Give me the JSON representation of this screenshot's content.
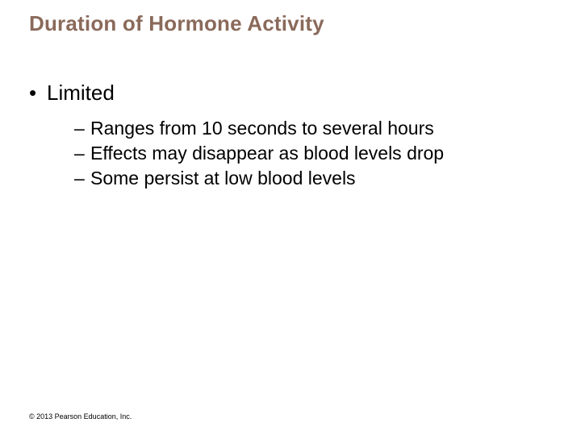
{
  "title": "Duration of Hormone Activity",
  "colors": {
    "title_color": "#8a6a5a",
    "text_color": "#000000",
    "background": "#ffffff"
  },
  "typography": {
    "title_fontsize": 26,
    "level1_fontsize": 26,
    "level2_fontsize": 23,
    "copyright_fontsize": 9,
    "font_family": "Arial"
  },
  "content": {
    "level1": {
      "bullet": "•",
      "text": "Limited"
    },
    "level2": [
      {
        "dash": "–",
        "text": "Ranges from 10 seconds to several hours"
      },
      {
        "dash": "–",
        "text": "Effects may disappear as blood levels drop"
      },
      {
        "dash": "–",
        "text": "Some persist at low blood levels"
      }
    ]
  },
  "copyright": "© 2013 Pearson Education, Inc."
}
